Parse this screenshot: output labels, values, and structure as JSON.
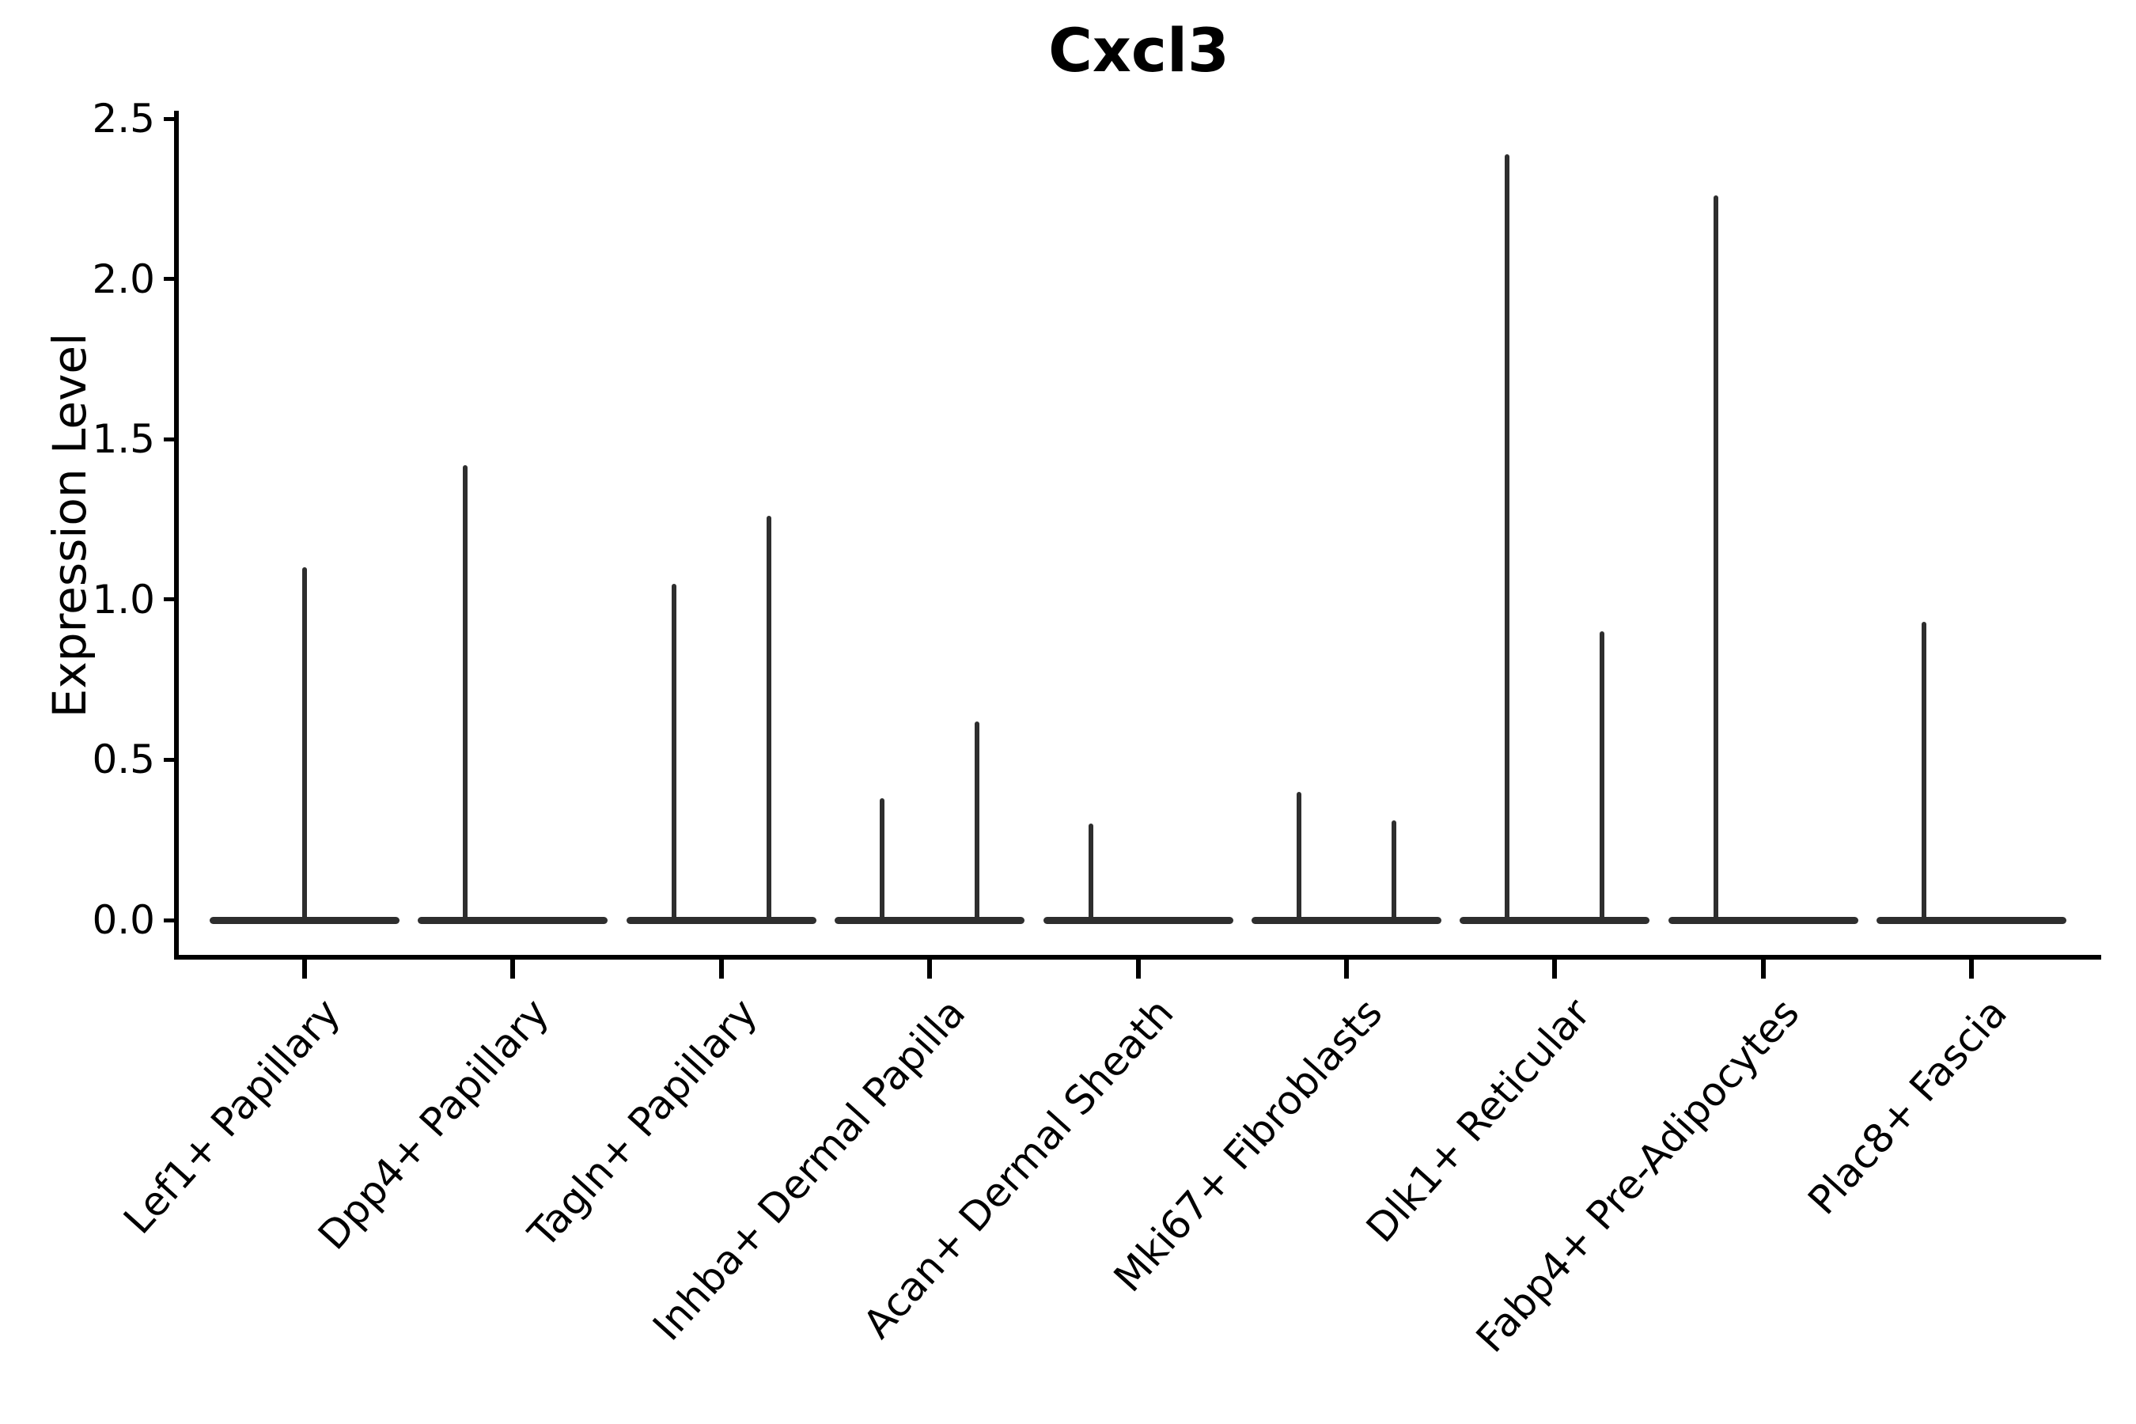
{
  "title": "Cxcl3",
  "y_axis": {
    "label": "Expression Level",
    "tick_labels": [
      "0.0",
      "0.5",
      "1.0",
      "1.5",
      "2.0",
      "2.5"
    ]
  },
  "chart_data": {
    "type": "violin",
    "title": "Cxcl3",
    "xlabel": "",
    "ylabel": "Expression Level",
    "ylim": [
      -0.13,
      2.53
    ],
    "yticks": [
      0.0,
      0.5,
      1.0,
      1.5,
      2.0,
      2.5
    ],
    "grid": false,
    "legend": false,
    "categories": [
      "Lef1+ Papillary",
      "Dpp4+ Papillary",
      "Tagln+ Papillary",
      "Inhba+ Dermal Papilla",
      "Acan+ Dermal Sheath",
      "Mki67+ Fibroblasts",
      "Dlk1+ Reticular",
      "Fabp4+ Pre-Adipocytes",
      "Plac8+ Fascia"
    ],
    "description": "Collapsed violins: bulk of expression values at 0 (flat horizontal band per category) with thin density spikes rising to the maximum expression value; spikes sit at the center or at left/right sub-positions within each category slot.",
    "violins": [
      {
        "category": "Lef1+ Papillary",
        "baseline_expression": 0.0,
        "spikes": [
          {
            "position": "center",
            "max_expression": 1.1
          }
        ]
      },
      {
        "category": "Dpp4+ Papillary",
        "baseline_expression": 0.0,
        "spikes": [
          {
            "position": "left",
            "max_expression": 1.42
          }
        ]
      },
      {
        "category": "Tagln+ Papillary",
        "baseline_expression": 0.0,
        "spikes": [
          {
            "position": "left",
            "max_expression": 1.05
          },
          {
            "position": "right",
            "max_expression": 1.26
          }
        ]
      },
      {
        "category": "Inhba+ Dermal Papilla",
        "baseline_expression": 0.0,
        "spikes": [
          {
            "position": "left",
            "max_expression": 0.38
          },
          {
            "position": "right",
            "max_expression": 0.62
          }
        ]
      },
      {
        "category": "Acan+ Dermal Sheath",
        "baseline_expression": 0.0,
        "spikes": [
          {
            "position": "left",
            "max_expression": 0.3
          }
        ]
      },
      {
        "category": "Mki67+ Fibroblasts",
        "baseline_expression": 0.0,
        "spikes": [
          {
            "position": "left",
            "max_expression": 0.4
          },
          {
            "position": "right",
            "max_expression": 0.31
          }
        ]
      },
      {
        "category": "Dlk1+ Reticular",
        "baseline_expression": 0.0,
        "spikes": [
          {
            "position": "left",
            "max_expression": 2.39
          },
          {
            "position": "right",
            "max_expression": 0.9
          }
        ]
      },
      {
        "category": "Fabp4+ Pre-Adipocytes",
        "baseline_expression": 0.0,
        "spikes": [
          {
            "position": "left",
            "max_expression": 2.26
          }
        ]
      },
      {
        "category": "Plac8+ Fascia",
        "baseline_expression": 0.0,
        "spikes": [
          {
            "position": "left",
            "max_expression": 0.93
          }
        ]
      }
    ],
    "colors": {
      "violin_stroke": "#2e2e2e",
      "axis": "#000000",
      "text": "#000000",
      "background": "#ffffff"
    }
  }
}
